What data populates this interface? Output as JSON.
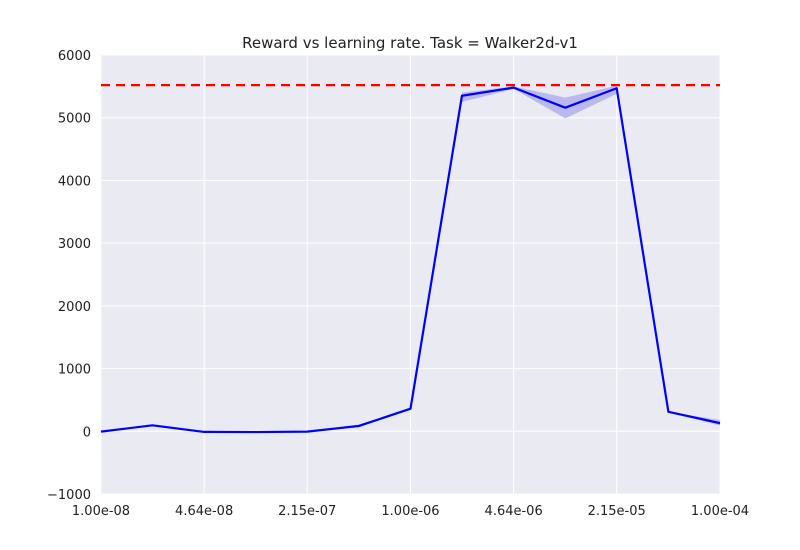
{
  "chart_data": {
    "type": "line",
    "title": "Reward vs learning rate. Task = Walker2d-v1",
    "xlabel": "",
    "ylabel": "",
    "x_scale": "log",
    "x": [
      1e-08,
      2.15e-08,
      4.64e-08,
      1e-07,
      2.15e-07,
      4.64e-07,
      1e-06,
      2.15e-06,
      4.64e-06,
      1e-05,
      2.15e-05,
      4.64e-05,
      0.0001
    ],
    "series": [
      {
        "values": [
          -5,
          95,
          -10,
          -12,
          -5,
          85,
          360,
          5350,
          5480,
          5160,
          5470,
          310,
          130
        ],
        "band_upper": [
          -5,
          95,
          -10,
          -12,
          -5,
          110,
          360,
          5400,
          5500,
          5320,
          5510,
          310,
          180
        ],
        "band_lower": [
          -5,
          95,
          -10,
          -12,
          -5,
          60,
          360,
          5250,
          5460,
          4990,
          5380,
          310,
          90
        ],
        "color": "#0000ff",
        "band_color": "#a8a8ee"
      }
    ],
    "reference_line": {
      "y": 5520,
      "color": "#ff0000",
      "style": "dashed"
    },
    "xlim": [
      1e-08,
      0.0001
    ],
    "ylim": [
      -1000,
      6000
    ],
    "xticks": [
      1e-08,
      4.64e-08,
      2.15e-07,
      1e-06,
      4.64e-06,
      2.15e-05,
      0.0001
    ],
    "xtick_labels": [
      "1.00e-08",
      "4.64e-08",
      "2.15e-07",
      "1.00e-06",
      "4.64e-06",
      "2.15e-05",
      "1.00e-04"
    ],
    "yticks": [
      -1000,
      0,
      1000,
      2000,
      3000,
      4000,
      5000,
      6000
    ],
    "ytick_labels": [
      "−1000",
      "0",
      "1000",
      "2000",
      "3000",
      "4000",
      "5000",
      "6000"
    ],
    "grid": true,
    "background": "#eaeaf2"
  }
}
